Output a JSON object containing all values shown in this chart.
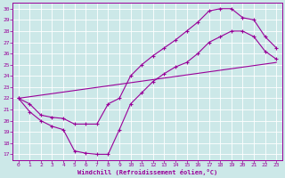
{
  "line1_x": [
    0,
    1,
    2,
    3,
    4,
    5,
    6,
    7,
    8,
    9,
    10,
    11,
    12,
    13,
    14,
    15,
    16,
    17,
    18,
    19,
    20,
    21,
    22,
    23
  ],
  "line1_y": [
    22,
    20.8,
    20.0,
    19.5,
    19.2,
    17.3,
    17.1,
    17.0,
    17.0,
    19.2,
    21.5,
    22.5,
    23.5,
    24.2,
    24.8,
    25.2,
    26.0,
    27.0,
    27.5,
    28.0,
    28.0,
    27.5,
    26.2,
    25.5
  ],
  "line2_x": [
    0,
    1,
    2,
    3,
    4,
    5,
    6,
    7,
    8,
    9,
    10,
    11,
    12,
    13,
    14,
    15,
    16,
    17,
    18,
    19,
    20,
    21,
    22,
    23
  ],
  "line2_y": [
    22,
    21.5,
    20.5,
    20.3,
    20.2,
    19.7,
    19.7,
    19.7,
    21.5,
    22.0,
    24.0,
    25.0,
    25.8,
    26.5,
    27.2,
    28.0,
    28.8,
    29.8,
    30.0,
    30.0,
    29.2,
    29.0,
    27.5,
    26.5
  ],
  "line3_x": [
    0,
    23
  ],
  "line3_y": [
    22,
    25.2
  ],
  "line_color": "#990099",
  "bg_color": "#cce8e8",
  "grid_color": "#b0d0d0",
  "xlabel": "Windchill (Refroidissement éolien,°C)",
  "xlim": [
    -0.5,
    23.5
  ],
  "ylim": [
    16.5,
    30.5
  ],
  "yticks": [
    17,
    18,
    19,
    20,
    21,
    22,
    23,
    24,
    25,
    26,
    27,
    28,
    29,
    30
  ],
  "xticks": [
    0,
    1,
    2,
    3,
    4,
    5,
    6,
    7,
    8,
    9,
    10,
    11,
    12,
    13,
    14,
    15,
    16,
    17,
    18,
    19,
    20,
    21,
    22,
    23
  ],
  "markersize": 3.5,
  "linewidth": 0.8
}
